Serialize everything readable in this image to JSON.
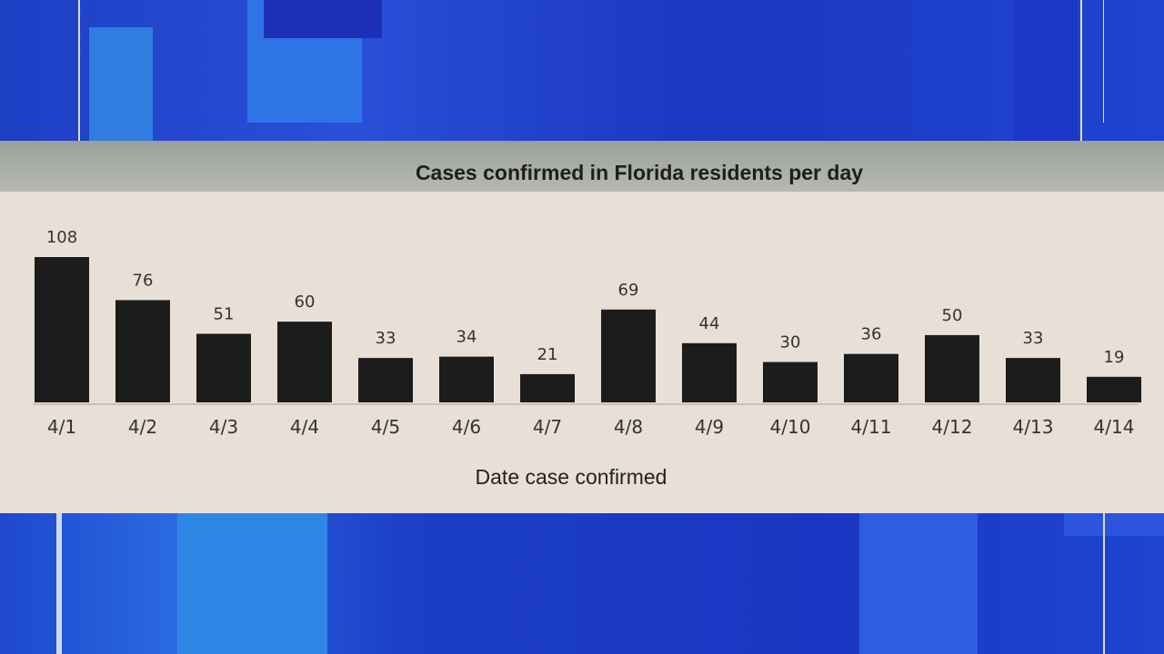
{
  "colors": {
    "background_blue": "#1a3fc8",
    "paper": "#e8e0d6",
    "bar": "#1c1c1c",
    "text": "#333333"
  },
  "chart_data": {
    "type": "bar",
    "title": "Cases confirmed in Florida residents per day",
    "xlabel": "Date case confirmed",
    "ylabel": "",
    "categories": [
      "4/1",
      "4/2",
      "4/3",
      "4/4",
      "4/5",
      "4/6",
      "4/7",
      "4/8",
      "4/9",
      "4/10",
      "4/11",
      "4/12",
      "4/13",
      "4/14"
    ],
    "values": [
      108,
      76,
      51,
      60,
      33,
      34,
      21,
      69,
      44,
      30,
      36,
      50,
      33,
      19
    ],
    "ylim": [
      0,
      108
    ],
    "grid": false,
    "data_labels": true
  }
}
